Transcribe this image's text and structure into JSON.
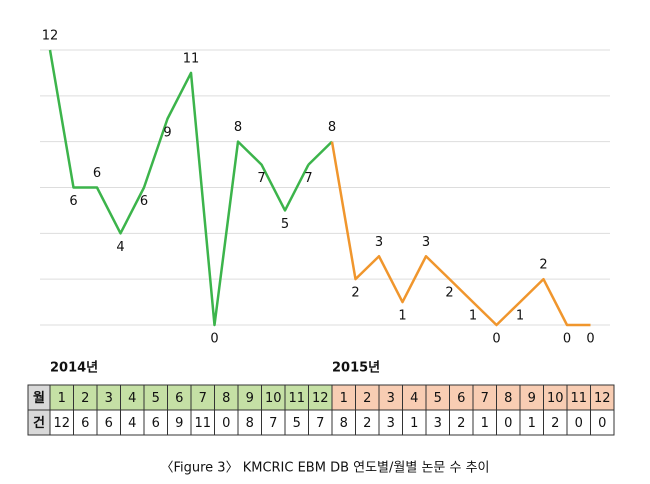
{
  "chart_data": {
    "type": "line",
    "categories": [
      1,
      2,
      3,
      4,
      5,
      6,
      7,
      8,
      9,
      10,
      11,
      12
    ],
    "series": [
      {
        "label": "2014년",
        "color": "#3cb44b",
        "cell_color": "#c5e0a5",
        "values": [
          12,
          6,
          6,
          4,
          6,
          9,
          11,
          0,
          8,
          7,
          5,
          7
        ]
      },
      {
        "label": "2015년",
        "color": "#f0962d",
        "cell_color": "#f8cdb3",
        "values": [
          8,
          2,
          3,
          1,
          3,
          2,
          1,
          0,
          1,
          2,
          0,
          0
        ]
      }
    ],
    "ylim": [
      0,
      12
    ],
    "yticks": [
      0,
      2,
      4,
      6,
      8,
      10,
      12
    ],
    "grid": true,
    "table": {
      "month_header": "월",
      "count_header": "건"
    },
    "caption": "〈Figure 3〉 KMCRIC EBM DB 연도별/월별 논문 수 추이"
  }
}
